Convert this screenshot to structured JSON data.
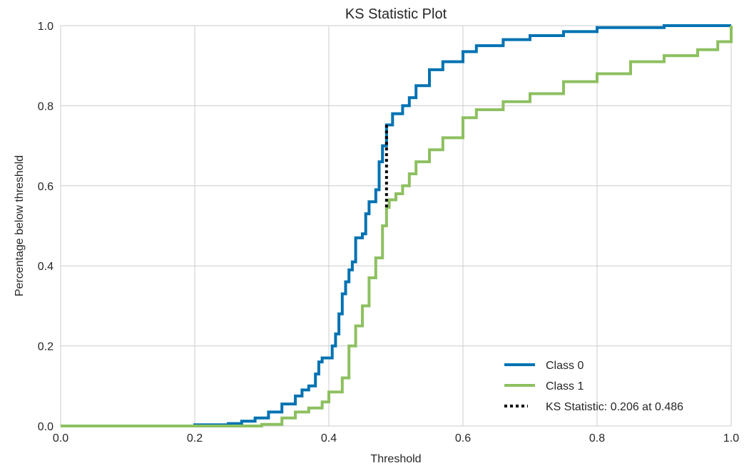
{
  "chart_data": {
    "type": "line",
    "title": "KS Statistic Plot",
    "xlabel": "Threshold",
    "ylabel": "Percentage below threshold",
    "xlim": [
      0.0,
      1.0
    ],
    "ylim": [
      0.0,
      1.0
    ],
    "xticks": [
      "0.0",
      "0.2",
      "0.4",
      "0.6",
      "0.8",
      "1.0"
    ],
    "yticks": [
      "0.0",
      "0.2",
      "0.4",
      "0.6",
      "0.8",
      "1.0"
    ],
    "grid": true,
    "legend_position": "bottom-right",
    "series": [
      {
        "name": "Class 0",
        "color": "#0072B2",
        "style": "solid",
        "x": [
          0.0,
          0.15,
          0.2,
          0.25,
          0.27,
          0.29,
          0.31,
          0.33,
          0.35,
          0.36,
          0.37,
          0.38,
          0.385,
          0.39,
          0.4,
          0.405,
          0.41,
          0.415,
          0.42,
          0.425,
          0.43,
          0.435,
          0.44,
          0.45,
          0.455,
          0.46,
          0.47,
          0.475,
          0.48,
          0.486,
          0.495,
          0.51,
          0.52,
          0.53,
          0.55,
          0.57,
          0.6,
          0.62,
          0.66,
          0.7,
          0.75,
          0.8,
          0.9,
          1.0
        ],
        "y": [
          0.0,
          0.0,
          0.003,
          0.006,
          0.012,
          0.02,
          0.035,
          0.055,
          0.075,
          0.09,
          0.1,
          0.13,
          0.16,
          0.17,
          0.17,
          0.2,
          0.23,
          0.28,
          0.33,
          0.36,
          0.39,
          0.41,
          0.47,
          0.48,
          0.53,
          0.56,
          0.59,
          0.66,
          0.7,
          0.752,
          0.78,
          0.8,
          0.82,
          0.85,
          0.89,
          0.91,
          0.935,
          0.95,
          0.965,
          0.975,
          0.985,
          0.995,
          1.0,
          1.0
        ]
      },
      {
        "name": "Class 1",
        "color": "#8DC060",
        "style": "solid",
        "x": [
          0.0,
          0.25,
          0.3,
          0.33,
          0.35,
          0.37,
          0.39,
          0.4,
          0.41,
          0.42,
          0.43,
          0.44,
          0.45,
          0.46,
          0.47,
          0.48,
          0.486,
          0.49,
          0.5,
          0.51,
          0.52,
          0.53,
          0.55,
          0.57,
          0.6,
          0.62,
          0.66,
          0.7,
          0.75,
          0.8,
          0.85,
          0.9,
          0.95,
          0.98,
          1.0
        ],
        "y": [
          0.0,
          0.0,
          0.004,
          0.02,
          0.035,
          0.045,
          0.06,
          0.085,
          0.085,
          0.12,
          0.2,
          0.25,
          0.3,
          0.37,
          0.42,
          0.5,
          0.546,
          0.565,
          0.58,
          0.6,
          0.63,
          0.66,
          0.69,
          0.72,
          0.77,
          0.79,
          0.81,
          0.83,
          0.86,
          0.88,
          0.91,
          0.925,
          0.94,
          0.96,
          1.0
        ]
      }
    ],
    "ks_statistic": {
      "label": "KS Statistic: 0.206 at 0.486",
      "x": 0.486,
      "y_from": 0.546,
      "y_to": 0.752,
      "color": "#000000",
      "style": "dotted"
    }
  }
}
